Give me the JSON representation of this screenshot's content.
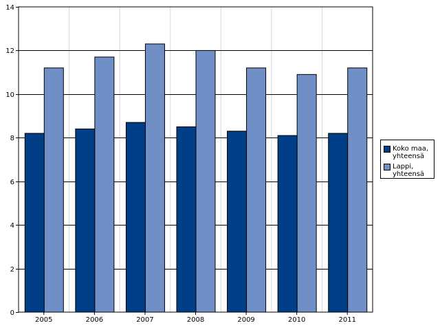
{
  "chart_data": {
    "type": "bar",
    "categories": [
      "2005",
      "2006",
      "2007",
      "2008",
      "2009",
      "2010",
      "2011"
    ],
    "series": [
      {
        "name": "Koko maa, yhteensä",
        "name_lines": [
          "Koko maa,",
          "yhteensä"
        ],
        "color": "#003f87",
        "values": [
          8.2,
          8.4,
          8.7,
          8.5,
          8.3,
          8.1,
          8.2
        ]
      },
      {
        "name": "Lappi, yhteensä",
        "name_lines": [
          "Lappi,",
          "yhteensä"
        ],
        "color": "#6f8fc6",
        "values": [
          11.2,
          11.7,
          12.3,
          12.0,
          11.2,
          10.9,
          11.2
        ]
      }
    ],
    "y_ticks": [
      "0",
      "2",
      "4",
      "6",
      "8",
      "10",
      "12",
      "14"
    ],
    "ylim": [
      0,
      14
    ],
    "title": "",
    "xlabel": "",
    "ylabel": "",
    "grid": "horizontal-major-vertical-minor",
    "legend": "right"
  }
}
